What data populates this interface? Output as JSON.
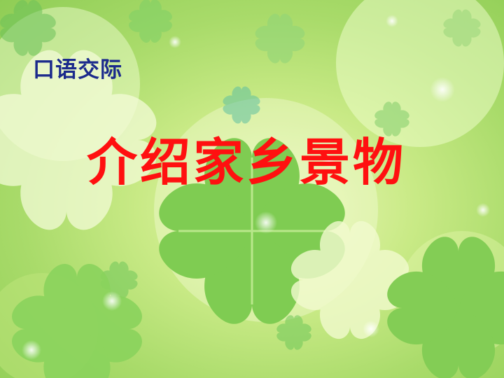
{
  "slide": {
    "subtitle": "口语交际",
    "title": "介绍家乡景物",
    "colors": {
      "subtitle": "#1b2a8c",
      "title": "#ff1010",
      "background_light": "#eaf7b8",
      "background_green": "#8fcd55"
    },
    "background_image": "four-leaf-clover-bokeh"
  }
}
